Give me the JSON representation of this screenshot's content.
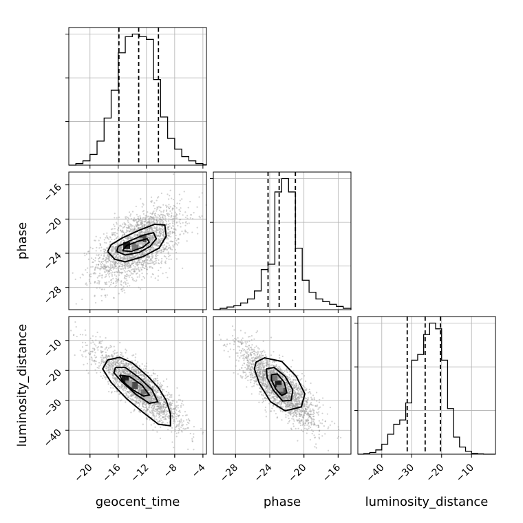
{
  "chart_data": {
    "type": "corner",
    "parameters": [
      "geocent_time",
      "phase",
      "luminosity_distance"
    ],
    "axis_labels": {
      "geocent_time": "geocent_time",
      "phase": "phase",
      "luminosity_distance": "luminosity_distance"
    },
    "ranges": {
      "geocent_time": [
        -23,
        -3.5
      ],
      "phase": [
        -30.6,
        -14.5
      ],
      "luminosity_distance": [
        -48,
        -2
      ]
    },
    "ticks": {
      "geocent_time": [
        -20,
        -16,
        -12,
        -8,
        -4
      ],
      "phase_x": [
        -28,
        -24,
        -20,
        -16
      ],
      "phase_y": [
        -16,
        -20,
        -24,
        -28
      ],
      "luminosity_distance_x": [
        -40,
        -30,
        -20,
        -10
      ],
      "luminosity_distance_y": [
        -10,
        -20,
        -30,
        -40
      ]
    },
    "quantiles": {
      "geocent_time": [
        -15.9,
        -13.1,
        -10.3
      ],
      "phase": [
        -24.2,
        -22.9,
        -21.0
      ],
      "luminosity_distance": [
        -31.5,
        -25.5,
        -20.4
      ]
    },
    "histograms": {
      "geocent_time": {
        "edges": [
          -23.0,
          -22.0,
          -21.0,
          -20.0,
          -19.0,
          -18.0,
          -17.0,
          -16.0,
          -15.0,
          -14.0,
          -13.0,
          -12.0,
          -11.0,
          -10.0,
          -9.0,
          -8.0,
          -7.0,
          -6.0,
          -5.0,
          -4.0,
          -3.5
        ],
        "counts": [
          0,
          3,
          8,
          20,
          45,
          88,
          140,
          210,
          240,
          245,
          240,
          235,
          160,
          90,
          50,
          30,
          16,
          8,
          3,
          1
        ]
      },
      "phase": {
        "edges": [
          -30.6,
          -29.8,
          -29.0,
          -28.2,
          -27.4,
          -26.6,
          -25.8,
          -25.0,
          -24.2,
          -23.4,
          -22.6,
          -21.8,
          -21.0,
          -20.2,
          -19.4,
          -18.6,
          -17.8,
          -17.0,
          -16.2,
          -15.4,
          -14.5
        ],
        "counts": [
          0,
          5,
          10,
          15,
          25,
          40,
          70,
          150,
          170,
          440,
          490,
          440,
          230,
          110,
          65,
          40,
          30,
          20,
          12,
          5
        ]
      },
      "luminosity_distance": {
        "edges": [
          -48,
          -46,
          -44,
          -42,
          -40,
          -38,
          -36,
          -34,
          -32,
          -30,
          -28,
          -26,
          -24,
          -22,
          -20,
          -18,
          -16,
          -14,
          -12,
          -10,
          -8,
          -6,
          -4,
          -2
        ],
        "counts": [
          0,
          2,
          6,
          15,
          35,
          70,
          105,
          120,
          180,
          330,
          350,
          420,
          460,
          440,
          330,
          160,
          60,
          25,
          10,
          3,
          1,
          0,
          0
        ]
      }
    },
    "pairs": [
      {
        "x": "geocent_time",
        "y": "phase",
        "center": [
          -13.1,
          -23.0
        ],
        "spread": [
          2.6,
          1.9
        ],
        "correlation": 0.55,
        "contours": [
          [
            [
              -17.5,
              -23.8
            ],
            [
              -16.5,
              -24.7
            ],
            [
              -15.0,
              -25.0
            ],
            [
              -12.5,
              -24.4
            ],
            [
              -10.2,
              -23.4
            ],
            [
              -9.2,
              -22.0
            ],
            [
              -9.4,
              -20.7
            ],
            [
              -10.8,
              -20.6
            ],
            [
              -13.0,
              -21.3
            ],
            [
              -15.4,
              -22.2
            ],
            [
              -17.0,
              -23.0
            ],
            [
              -17.5,
              -23.8
            ]
          ],
          [
            [
              -16.2,
              -23.8
            ],
            [
              -15.0,
              -24.2
            ],
            [
              -13.0,
              -23.9
            ],
            [
              -11.5,
              -23.2
            ],
            [
              -10.6,
              -22.3
            ],
            [
              -11.0,
              -21.6
            ],
            [
              -12.5,
              -21.9
            ],
            [
              -14.5,
              -22.6
            ],
            [
              -16.0,
              -23.2
            ],
            [
              -16.2,
              -23.8
            ]
          ],
          [
            [
              -15.4,
              -23.7
            ],
            [
              -14.2,
              -23.8
            ],
            [
              -12.5,
              -23.3
            ],
            [
              -11.6,
              -22.7
            ],
            [
              -11.9,
              -22.3
            ],
            [
              -13.2,
              -22.6
            ],
            [
              -14.8,
              -23.1
            ],
            [
              -15.4,
              -23.7
            ]
          ]
        ],
        "dense_bins": [
          [
            -14.8,
            -23.1
          ],
          [
            -12.5,
            -22.3
          ],
          [
            -13.6,
            -23.2
          ],
          [
            -16.0,
            -23.6
          ],
          [
            -13.0,
            -22.6
          ]
        ]
      },
      {
        "x": "geocent_time",
        "y": "luminosity_distance",
        "center": [
          -13.1,
          -25.5
        ],
        "spread": [
          2.6,
          5.5
        ],
        "correlation": -0.85,
        "contours": [
          [
            [
              -17.5,
              -16.5
            ],
            [
              -15.8,
              -15.6
            ],
            [
              -14.0,
              -17.5
            ],
            [
              -11.8,
              -22.0
            ],
            [
              -10.3,
              -25.8
            ],
            [
              -9.2,
              -30.0
            ],
            [
              -8.6,
              -34.5
            ],
            [
              -8.6,
              -38.5
            ],
            [
              -10.3,
              -38.0
            ],
            [
              -12.5,
              -34.0
            ],
            [
              -14.8,
              -29.5
            ],
            [
              -17.0,
              -24.0
            ],
            [
              -18.2,
              -19.5
            ],
            [
              -17.5,
              -16.5
            ]
          ],
          [
            [
              -16.4,
              -19.0
            ],
            [
              -15.0,
              -19.0
            ],
            [
              -13.0,
              -22.5
            ],
            [
              -11.2,
              -26.5
            ],
            [
              -10.4,
              -30.5
            ],
            [
              -11.6,
              -31.0
            ],
            [
              -13.5,
              -28.0
            ],
            [
              -15.6,
              -23.5
            ],
            [
              -16.6,
              -20.8
            ],
            [
              -16.4,
              -19.0
            ]
          ],
          [
            [
              -15.8,
              -21.6
            ],
            [
              -14.4,
              -22.0
            ],
            [
              -12.6,
              -25.0
            ],
            [
              -11.6,
              -28.2
            ],
            [
              -12.4,
              -28.6
            ],
            [
              -14.0,
              -26.4
            ],
            [
              -15.4,
              -23.6
            ],
            [
              -15.8,
              -21.6
            ]
          ]
        ],
        "dense_bins": [
          [
            -15.0,
            -23.0
          ],
          [
            -13.7,
            -25.0
          ],
          [
            -12.3,
            -27.5
          ],
          [
            -14.5,
            -24.5
          ],
          [
            -11.8,
            -29.0
          ]
        ]
      },
      {
        "x": "phase",
        "y": "luminosity_distance",
        "center": [
          -22.9,
          -25.5
        ],
        "spread": [
          1.9,
          5.5
        ],
        "correlation": -0.8,
        "contours": [
          [
            [
              -25.6,
              -17.2
            ],
            [
              -24.6,
              -15.8
            ],
            [
              -22.6,
              -17.0
            ],
            [
              -20.9,
              -22.0
            ],
            [
              -19.9,
              -27.8
            ],
            [
              -20.3,
              -32.2
            ],
            [
              -22.2,
              -33.5
            ],
            [
              -23.9,
              -30.5
            ],
            [
              -25.2,
              -24.5
            ],
            [
              -25.8,
              -19.5
            ],
            [
              -25.6,
              -17.2
            ]
          ],
          [
            [
              -24.4,
              -19.5
            ],
            [
              -23.5,
              -19.0
            ],
            [
              -22.2,
              -22.0
            ],
            [
              -21.3,
              -26.5
            ],
            [
              -21.5,
              -30.0
            ],
            [
              -22.5,
              -30.2
            ],
            [
              -23.6,
              -26.5
            ],
            [
              -24.3,
              -22.5
            ],
            [
              -24.4,
              -19.5
            ]
          ],
          [
            [
              -23.8,
              -21.4
            ],
            [
              -23.1,
              -21.2
            ],
            [
              -22.3,
              -24.0
            ],
            [
              -22.0,
              -27.5
            ],
            [
              -22.6,
              -28.4
            ],
            [
              -23.3,
              -26.2
            ],
            [
              -23.8,
              -23.2
            ],
            [
              -23.8,
              -21.4
            ]
          ]
        ],
        "dense_bins": [
          [
            -23.0,
            -24.5
          ],
          [
            -22.5,
            -27.0
          ],
          [
            -23.5,
            -22.5
          ],
          [
            -22.8,
            -26.0
          ]
        ]
      }
    ]
  }
}
